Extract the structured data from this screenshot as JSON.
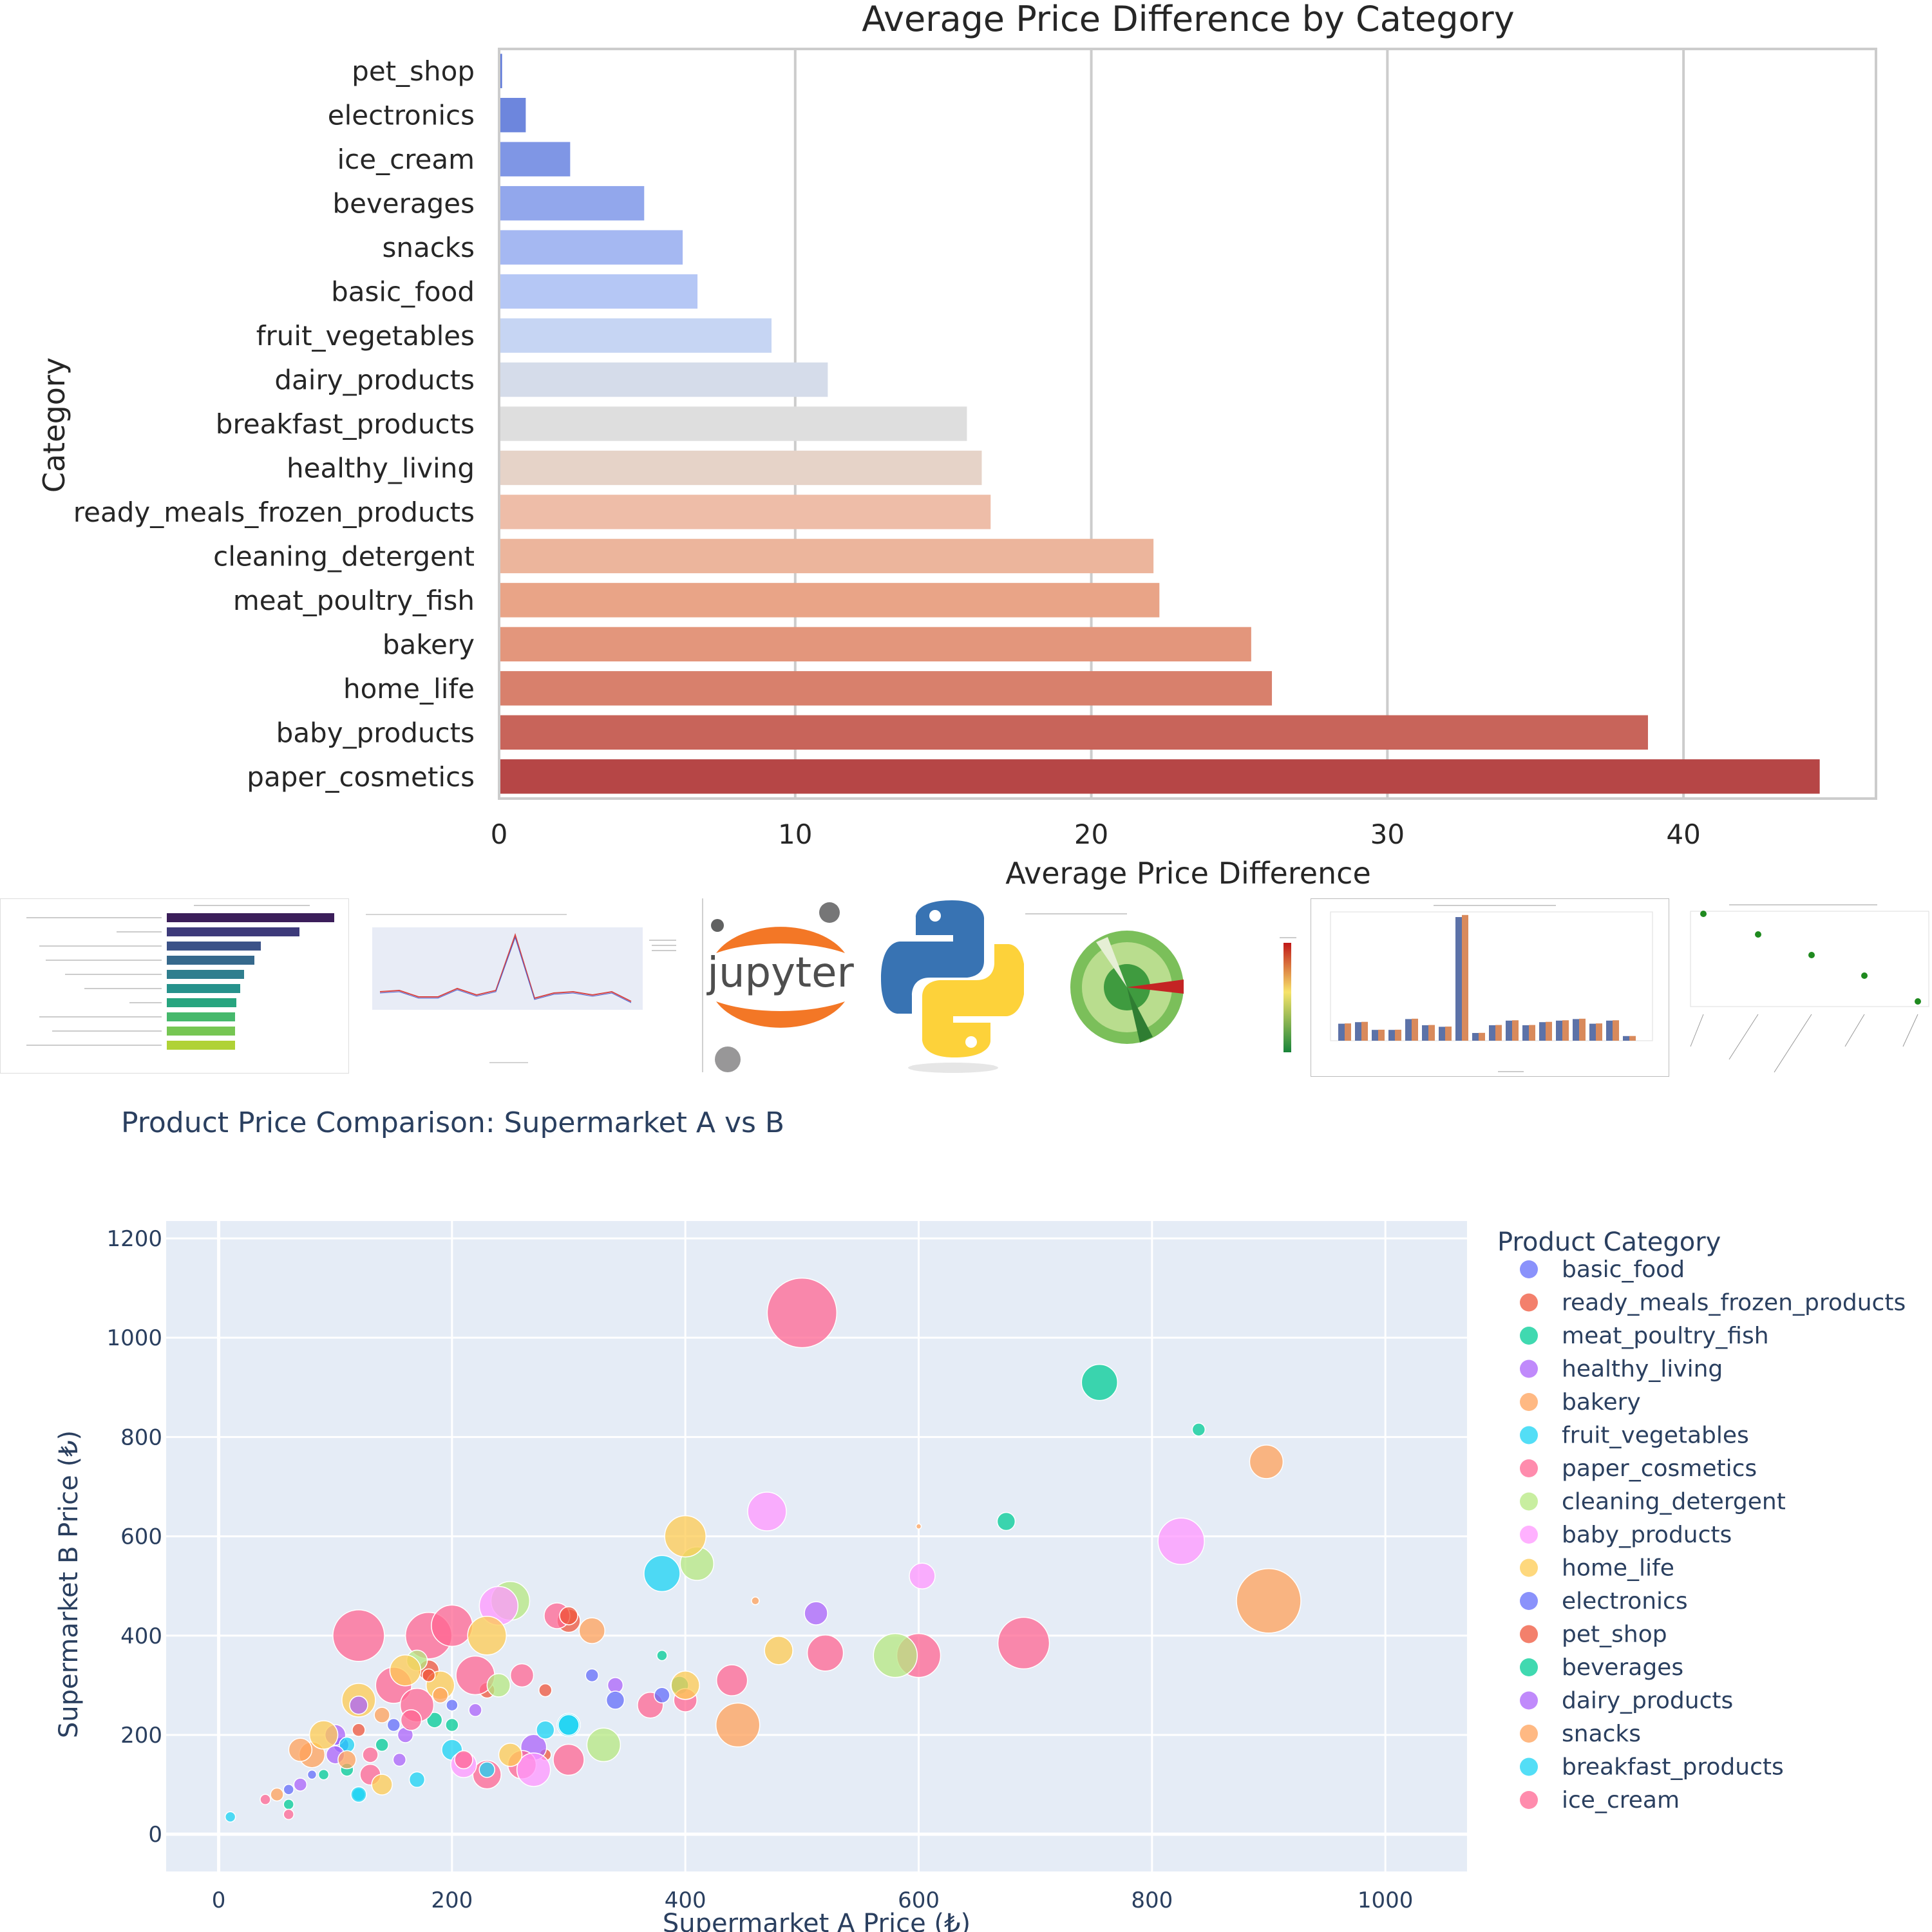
{
  "bar_chart_title": "Average Price Difference by Category",
  "bubble_chart_title": "Product Price Comparison: Supermarket A vs B",
  "chart_data": [
    {
      "type": "bar",
      "orientation": "horizontal",
      "title": "Average Price Difference by Category",
      "xlabel": "Average Price Difference",
      "ylabel": "Category",
      "xlim": [
        0,
        46.5
      ],
      "xticks": [
        0,
        10,
        20,
        30,
        40
      ],
      "grid": true,
      "categories": [
        "pet_shop",
        "electronics",
        "ice_cream",
        "beverages",
        "snacks",
        "basic_food",
        "fruit_vegetables",
        "dairy_products",
        "breakfast_products",
        "healthy_living",
        "ready_meals_frozen_products",
        "cleaning_detergent",
        "meat_poultry_fish",
        "bakery",
        "home_life",
        "baby_products",
        "paper_cosmetics"
      ],
      "values": [
        0.1,
        0.9,
        2.4,
        4.9,
        6.2,
        6.7,
        9.2,
        11.1,
        15.8,
        16.3,
        16.6,
        22.1,
        22.3,
        25.4,
        26.1,
        38.8,
        44.6
      ],
      "colors": [
        "#5f79d8",
        "#6d86dd",
        "#7f96e5",
        "#92a7ec",
        "#a5b8f2",
        "#b5c7f5",
        "#c6d5f3",
        "#d5dcea",
        "#dedede",
        "#e6d3c8",
        "#eebda8",
        "#ecb59c",
        "#e9a487",
        "#e3967c",
        "#d8806c",
        "#c8645a",
        "#b64646"
      ]
    },
    {
      "type": "scatter",
      "subtype": "bubble",
      "title": "Product Price Comparison: Supermarket A vs B",
      "xlabel": "Supermarket A Price (₺)",
      "ylabel": "Supermarket B Price (₺)",
      "xlim": [
        -45,
        1070
      ],
      "ylim": [
        -75,
        1235
      ],
      "xticks": [
        0,
        200,
        400,
        600,
        800,
        1000
      ],
      "yticks": [
        0,
        200,
        400,
        600,
        800,
        1000,
        1200
      ],
      "grid": true,
      "legend_title": "Product Category",
      "legend_position": "right",
      "series": [
        {
          "name": "basic_food",
          "color": "#636efa",
          "points": [
            [
              105,
              180,
              12
            ],
            [
              150,
              220,
              10
            ],
            [
              60,
              90,
              8
            ],
            [
              200,
              260,
              9
            ],
            [
              80,
              120,
              7
            ]
          ]
        },
        {
          "name": "ready_meals_frozen_products",
          "color": "#ef553b",
          "points": [
            [
              300,
              430,
              18
            ],
            [
              180,
              330,
              16
            ],
            [
              230,
              290,
              12
            ],
            [
              120,
              210,
              10
            ],
            [
              280,
              160,
              9
            ]
          ]
        },
        {
          "name": "meat_poultry_fish",
          "color": "#00cc96",
          "points": [
            [
              755,
              910,
              28
            ],
            [
              840,
              815,
              10
            ],
            [
              675,
              630,
              14
            ],
            [
              185,
              230,
              12
            ],
            [
              110,
              130,
              10
            ],
            [
              395,
              300,
              14
            ]
          ]
        },
        {
          "name": "healthy_living",
          "color": "#ab63fa",
          "points": [
            [
              512,
              445,
              18
            ],
            [
              270,
              175,
              20
            ],
            [
              340,
              300,
              12
            ],
            [
              100,
              200,
              16
            ],
            [
              155,
              150,
              10
            ]
          ]
        },
        {
          "name": "bakery",
          "color": "#ffa15a",
          "points": [
            [
              900,
              470,
              50
            ],
            [
              898,
              750,
              26
            ],
            [
              445,
              220,
              34
            ],
            [
              320,
              410,
              20
            ],
            [
              80,
              160,
              20
            ],
            [
              460,
              470,
              6
            ],
            [
              600,
              620,
              4
            ]
          ]
        },
        {
          "name": "fruit_vegetables",
          "color": "#19d3f3",
          "points": [
            [
              380,
              525,
              28
            ],
            [
              300,
              220,
              18
            ],
            [
              280,
              210,
              14
            ],
            [
              200,
              170,
              16
            ],
            [
              120,
              80,
              10
            ],
            [
              110,
              180,
              12
            ]
          ]
        },
        {
          "name": "paper_cosmetics",
          "color": "#ff6692",
          "points": [
            [
              500,
              1050,
              54
            ],
            [
              690,
              385,
              40
            ],
            [
              600,
              360,
              34
            ],
            [
              520,
              365,
              28
            ],
            [
              440,
              310,
              24
            ],
            [
              120,
              400,
              40
            ],
            [
              180,
              400,
              36
            ],
            [
              200,
              420,
              32
            ],
            [
              220,
              320,
              30
            ],
            [
              150,
              300,
              28
            ],
            [
              170,
              260,
              26
            ],
            [
              230,
              120,
              22
            ],
            [
              300,
              150,
              24
            ],
            [
              260,
              140,
              22
            ],
            [
              130,
              120,
              16
            ],
            [
              260,
              320,
              18
            ],
            [
              290,
              440,
              20
            ],
            [
              370,
              260,
              20
            ],
            [
              400,
              270,
              18
            ]
          ]
        },
        {
          "name": "cleaning_detergent",
          "color": "#b6e880",
          "points": [
            [
              410,
              545,
              26
            ],
            [
              580,
              360,
              34
            ],
            [
              250,
              470,
              30
            ],
            [
              330,
              180,
              26
            ],
            [
              240,
              300,
              18
            ],
            [
              170,
              350,
              16
            ]
          ]
        },
        {
          "name": "baby_products",
          "color": "#ff97ff",
          "points": [
            [
              825,
              590,
              36
            ],
            [
              470,
              650,
              30
            ],
            [
              603,
              520,
              20
            ],
            [
              240,
              460,
              30
            ],
            [
              270,
              130,
              26
            ],
            [
              210,
              140,
              20
            ]
          ]
        },
        {
          "name": "home_life",
          "color": "#fecb52",
          "points": [
            [
              400,
              600,
              32
            ],
            [
              400,
              300,
              22
            ],
            [
              480,
              370,
              22
            ],
            [
              230,
              400,
              30
            ],
            [
              160,
              330,
              24
            ],
            [
              190,
              300,
              22
            ],
            [
              120,
              270,
              26
            ],
            [
              90,
              200,
              22
            ],
            [
              250,
              160,
              18
            ],
            [
              140,
              100,
              16
            ]
          ]
        },
        {
          "name": "electronics",
          "color": "#636efa",
          "points": [
            [
              340,
              270,
              14
            ],
            [
              380,
              280,
              12
            ],
            [
              320,
              320,
              10
            ]
          ]
        },
        {
          "name": "pet_shop",
          "color": "#ef553b",
          "points": [
            [
              300,
              440,
              14
            ],
            [
              280,
              290,
              10
            ],
            [
              180,
              320,
              10
            ]
          ]
        },
        {
          "name": "beverages",
          "color": "#00cc96",
          "points": [
            [
              200,
              220,
              10
            ],
            [
              140,
              180,
              10
            ],
            [
              380,
              360,
              8
            ],
            [
              90,
              120,
              8
            ],
            [
              60,
              60,
              8
            ]
          ]
        },
        {
          "name": "dairy_products",
          "color": "#ab63fa",
          "points": [
            [
              100,
              160,
              14
            ],
            [
              160,
              200,
              12
            ],
            [
              120,
              260,
              14
            ],
            [
              70,
              100,
              10
            ],
            [
              220,
              250,
              10
            ]
          ]
        },
        {
          "name": "snacks",
          "color": "#ffa15a",
          "points": [
            [
              70,
              170,
              18
            ],
            [
              110,
              150,
              14
            ],
            [
              50,
              80,
              10
            ],
            [
              190,
              280,
              12
            ],
            [
              140,
              240,
              12
            ]
          ]
        },
        {
          "name": "breakfast_products",
          "color": "#19d3f3",
          "points": [
            [
              300,
              220,
              16
            ],
            [
              120,
              80,
              12
            ],
            [
              10,
              35,
              8
            ],
            [
              230,
              130,
              12
            ],
            [
              170,
              110,
              12
            ]
          ]
        },
        {
          "name": "ice_cream",
          "color": "#ff6692",
          "points": [
            [
              165,
              230,
              16
            ],
            [
              210,
              150,
              14
            ],
            [
              60,
              40,
              8
            ],
            [
              40,
              70,
              8
            ],
            [
              130,
              160,
              12
            ]
          ]
        }
      ]
    }
  ]
}
